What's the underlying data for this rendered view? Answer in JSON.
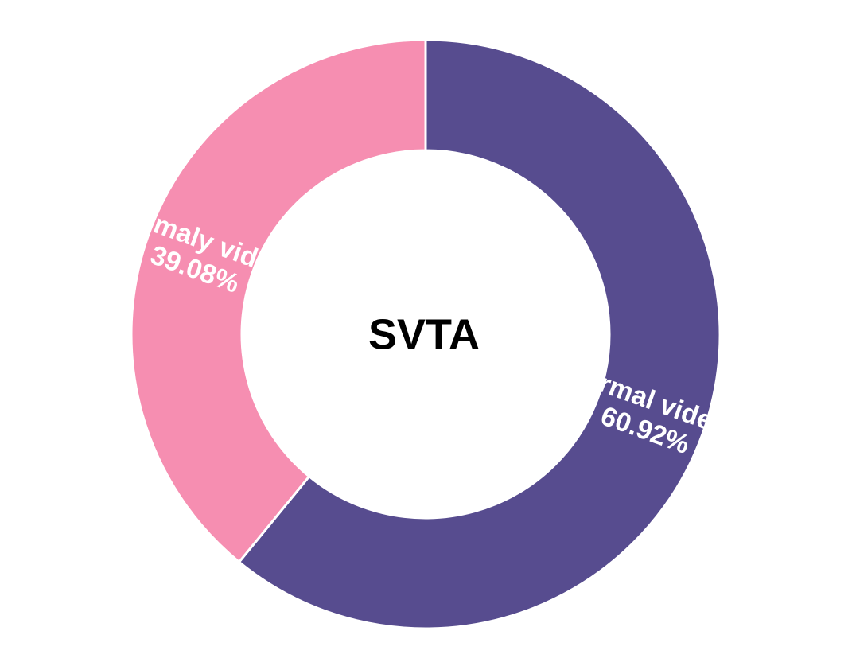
{
  "chart_data": {
    "type": "pie",
    "variant": "donut",
    "title": "SVTA",
    "categories": [
      "normal videos",
      "anomaly videos"
    ],
    "values": [
      60.92,
      39.08
    ],
    "value_labels": [
      "60.92%",
      "39.08%"
    ],
    "colors": [
      "#574C8F",
      "#F68EB1"
    ],
    "start": "12 o'clock",
    "direction": "clockwise",
    "legend": "none"
  }
}
